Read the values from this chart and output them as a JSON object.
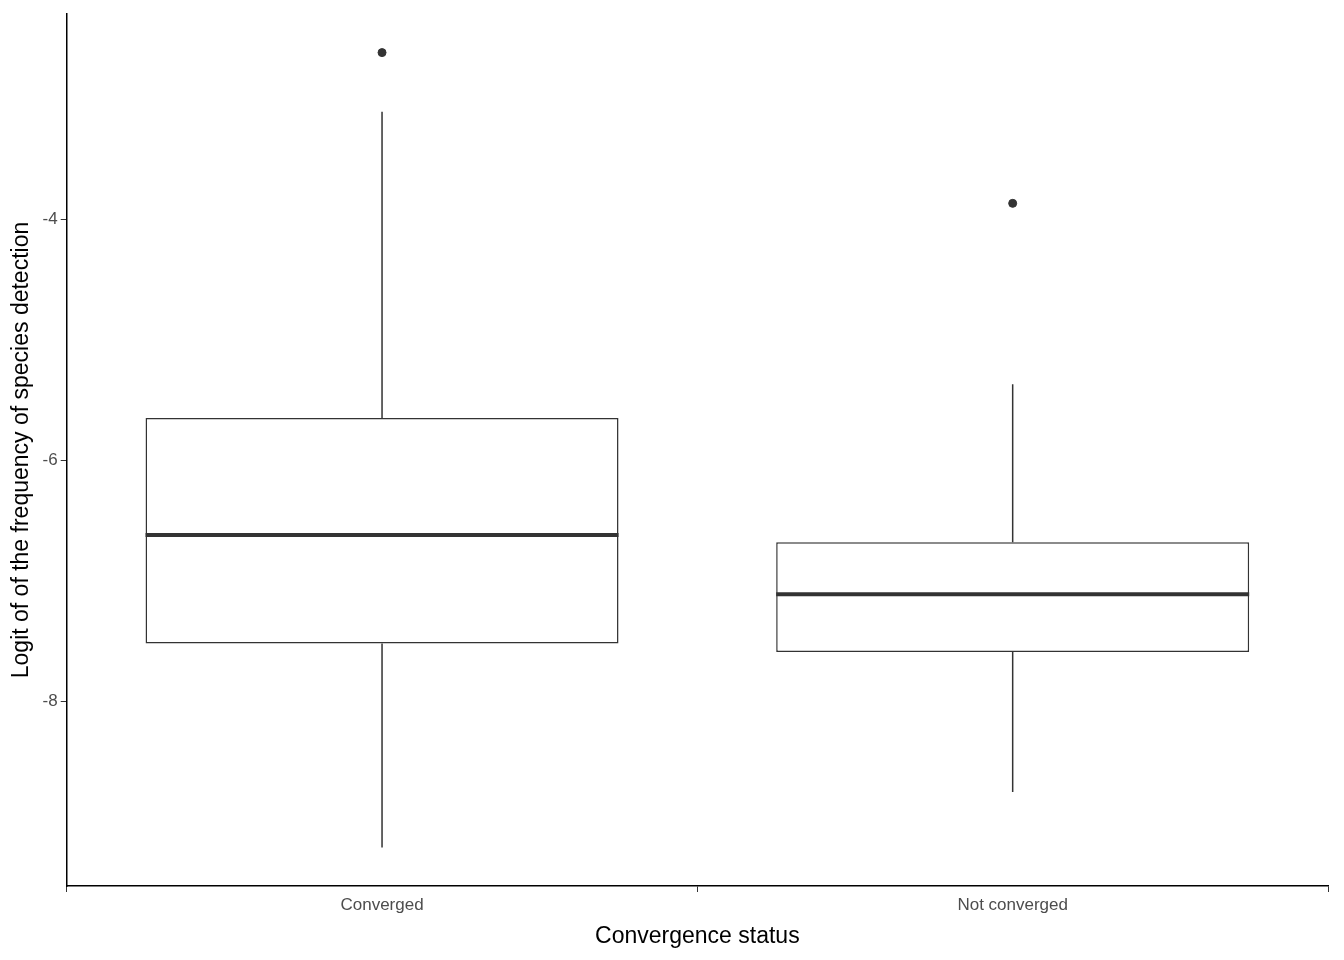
{
  "chart_data": {
    "type": "box",
    "xlabel": "Convergence status",
    "ylabel": "Logit of of the frequency of species detection",
    "categories": [
      "Converged",
      "Not converged"
    ],
    "boxes": [
      {
        "low": -9.21,
        "q1": -7.52,
        "median": -6.62,
        "q3": -5.65,
        "high": -3.11,
        "outliers": [
          -2.62
        ]
      },
      {
        "low": -8.75,
        "q1": -7.59,
        "median": -7.11,
        "q3": -6.68,
        "high": -5.37,
        "outliers": [
          -3.87
        ]
      }
    ],
    "ylim": [
      -9.53,
      -2.3
    ],
    "yticks": [
      -8,
      -6,
      -4
    ]
  }
}
